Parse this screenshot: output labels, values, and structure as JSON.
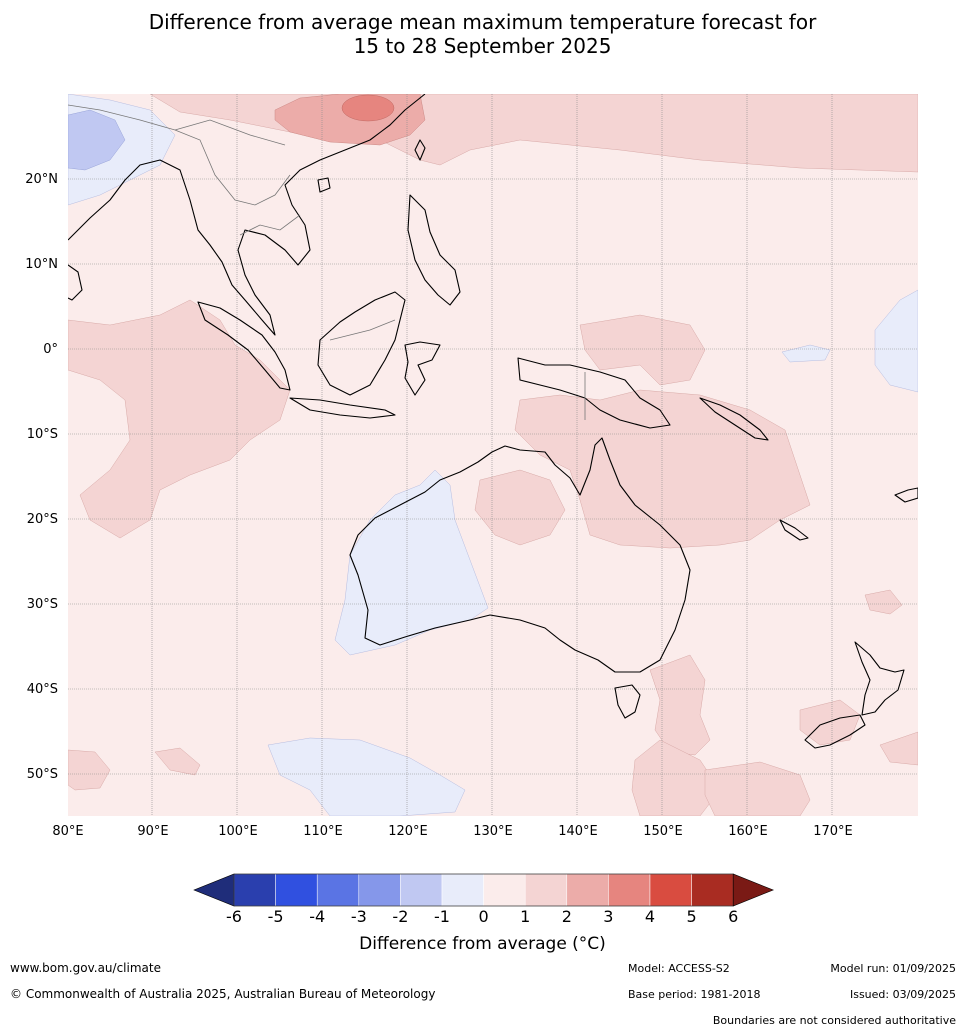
{
  "title_line1": "Difference from average mean maximum temperature forecast for",
  "title_line2": "15 to 28 September 2025",
  "lat_labels": [
    "20°N",
    "10°N",
    "0°",
    "10°S",
    "20°S",
    "30°S",
    "40°S",
    "50°S"
  ],
  "lon_labels": [
    "80°E",
    "90°E",
    "100°E",
    "110°E",
    "120°E",
    "130°E",
    "140°E",
    "150°E",
    "160°E",
    "170°E"
  ],
  "colorbar": {
    "ticks": [
      "-6",
      "-5",
      "-4",
      "-3",
      "-2",
      "-1",
      "0",
      "1",
      "2",
      "3",
      "4",
      "5",
      "6"
    ],
    "colors": [
      "#1f2d7a",
      "#2a3fae",
      "#3050e0",
      "#5a74e4",
      "#8597ea",
      "#c0c8f2",
      "#e8ecfa",
      "#fbeceb",
      "#f4d4d3",
      "#ecaca9",
      "#e6857f",
      "#d94c40",
      "#a92c22",
      "#7a1a15"
    ],
    "title": "Difference from average (°C)"
  },
  "map_colors": {
    "anom_0_1": "#fbeceb",
    "anom_1_2": "#f4d4d3",
    "anom_2_3": "#ecaca9",
    "anom_3_4": "#e6857f",
    "anom_m1_0": "#e8ecfa",
    "anom_m2_m1": "#c0c8f2"
  },
  "footer": {
    "website": "www.bom.gov.au/climate",
    "copyright": "© Commonwealth of Australia 2025, Australian Bureau of Meteorology",
    "model": "Model: ACCESS-S2",
    "base_period": "Base period: 1981-2018",
    "model_run": "Model run: 01/09/2025",
    "issued": "Issued: 03/09/2025",
    "boundaries_note": "Boundaries are not considered authoritative"
  }
}
